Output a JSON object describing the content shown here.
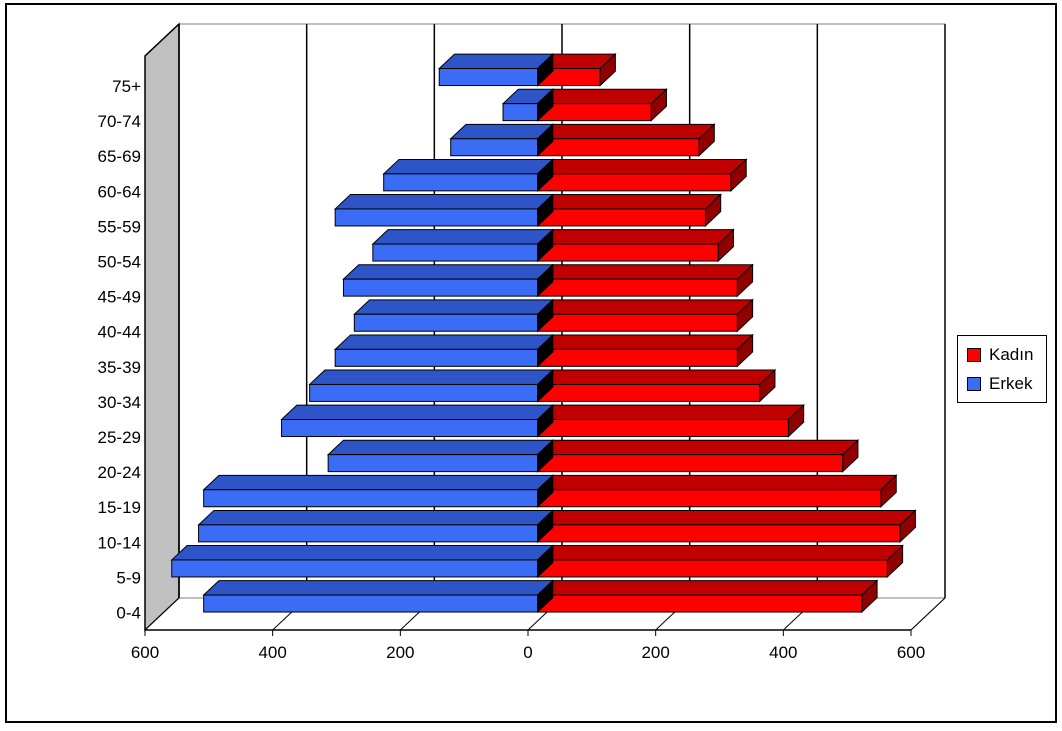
{
  "chart_data": {
    "type": "bar",
    "orientation": "horizontal",
    "style": "3d",
    "categories": [
      "0-4",
      "5-9",
      "10-14",
      "15-19",
      "20-24",
      "25-29",
      "30-34",
      "35-39",
      "40-44",
      "45-49",
      "50-54",
      "55-59",
      "60-64",
      "65-69",
      "70-74",
      "75+"
    ],
    "series": [
      {
        "name": "Kadın",
        "color": "#ff0000",
        "values": [
          508,
          548,
          568,
          538,
          478,
          393,
          348,
          313,
          313,
          313,
          283,
          263,
          303,
          253,
          178,
          98
        ]
      },
      {
        "name": "Erkek",
        "color": "#3b6cf5",
        "values": [
          -523,
          -573,
          -531,
          -523,
          -328,
          -401,
          -357,
          -317,
          -287,
          -304,
          -258,
          -317,
          -241,
          -136,
          -54,
          -154
        ]
      }
    ],
    "x_tick_labels": [
      "600",
      "400",
      "200",
      "0",
      "200",
      "400",
      "600"
    ],
    "x_ticks": [
      -600,
      -400,
      -200,
      0,
      200,
      400,
      600
    ],
    "xlim": [
      -600,
      600
    ],
    "grid": true,
    "legend_position": "right",
    "legend": [
      "Kadın",
      "Erkek"
    ]
  }
}
